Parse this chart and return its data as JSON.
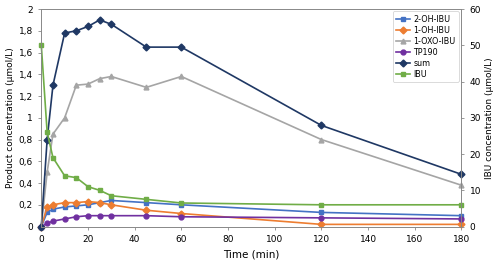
{
  "time": [
    0,
    2.5,
    5,
    10,
    15,
    20,
    25,
    30,
    45,
    60,
    120,
    180
  ],
  "series": {
    "2-OH-IBU": {
      "values": [
        0.0,
        0.13,
        0.16,
        0.18,
        0.19,
        0.2,
        0.22,
        0.24,
        0.22,
        0.2,
        0.13,
        0.1
      ],
      "color": "#4472C4",
      "marker": "s",
      "label": "2-OH-IBU",
      "axis": "left"
    },
    "1-OH-IBU": {
      "values": [
        0.0,
        0.18,
        0.2,
        0.22,
        0.22,
        0.23,
        0.22,
        0.2,
        0.15,
        0.12,
        0.02,
        0.02
      ],
      "color": "#ED7D31",
      "marker": "D",
      "label": "1-OH-IBU",
      "axis": "left"
    },
    "1-OXO-IBU": {
      "values": [
        0.0,
        0.5,
        0.85,
        1.0,
        1.3,
        1.31,
        1.36,
        1.38,
        1.28,
        1.38,
        0.8,
        0.38
      ],
      "color": "#A5A5A5",
      "marker": "^",
      "label": "1-OXO-IBU",
      "axis": "left"
    },
    "TP190": {
      "values": [
        0.0,
        0.03,
        0.05,
        0.07,
        0.09,
        0.1,
        0.1,
        0.1,
        0.1,
        0.09,
        0.08,
        0.07
      ],
      "color": "#7030A0",
      "marker": "o",
      "label": "TP190",
      "axis": "left"
    },
    "sum": {
      "values": [
        0.0,
        0.8,
        1.3,
        1.78,
        1.8,
        1.84,
        1.9,
        1.86,
        1.65,
        1.65,
        0.93,
        0.48
      ],
      "color": "#1F3864",
      "marker": "D",
      "label": "sum",
      "axis": "left"
    },
    "IBU": {
      "values": [
        50.0,
        26.0,
        19.0,
        14.0,
        13.5,
        11.0,
        10.0,
        8.5,
        7.5,
        6.5,
        6.0,
        6.0
      ],
      "color": "#70AD47",
      "marker": "s",
      "label": "IBU",
      "axis": "right"
    }
  },
  "left_ylim": [
    0,
    2.0
  ],
  "right_ylim": [
    0,
    60
  ],
  "left_yticks": [
    0.0,
    0.2,
    0.4,
    0.6,
    0.8,
    1.0,
    1.2,
    1.4,
    1.6,
    1.8,
    2.0
  ],
  "right_yticks": [
    0,
    10,
    20,
    30,
    40,
    50,
    60
  ],
  "xlim": [
    0,
    180
  ],
  "xticks": [
    0,
    20,
    40,
    60,
    80,
    100,
    120,
    140,
    160,
    180
  ],
  "xlabel": "Time (min)",
  "ylabel_left": "Product concentration (μmol/L)",
  "ylabel_right": "IBU concentration (μmol/L)",
  "legend_order": [
    "2-OH-IBU",
    "1-OH-IBU",
    "1-OXO-IBU",
    "TP190",
    "sum",
    "IBU"
  ],
  "background_color": "#ffffff",
  "linewidth": 1.2,
  "markersize": 3.5
}
